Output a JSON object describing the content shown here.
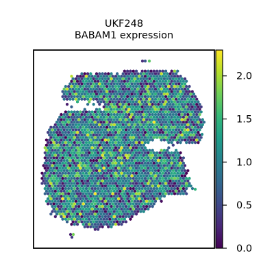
{
  "chart_data": {
    "type": "scatter",
    "title": [
      "UKF248",
      "BABAM1 expression"
    ],
    "xlabel": "",
    "ylabel": "",
    "grid": false,
    "colorbar": {
      "colormap": "viridis",
      "range": [
        0.0,
        2.3
      ],
      "ticks": [
        0.0,
        0.5,
        1.0,
        1.5,
        2.0
      ],
      "tick_labels": [
        "0.0",
        "0.5",
        "1.0",
        "1.5",
        "2.0"
      ]
    },
    "colormap_stops": [
      "#440154",
      "#482878",
      "#3e4989",
      "#31688e",
      "#26828e",
      "#1f9e89",
      "#35b779",
      "#6ece58",
      "#b5de2b",
      "#fde725"
    ],
    "marker": "hexagon",
    "approx_mean_value": 1.0
  }
}
